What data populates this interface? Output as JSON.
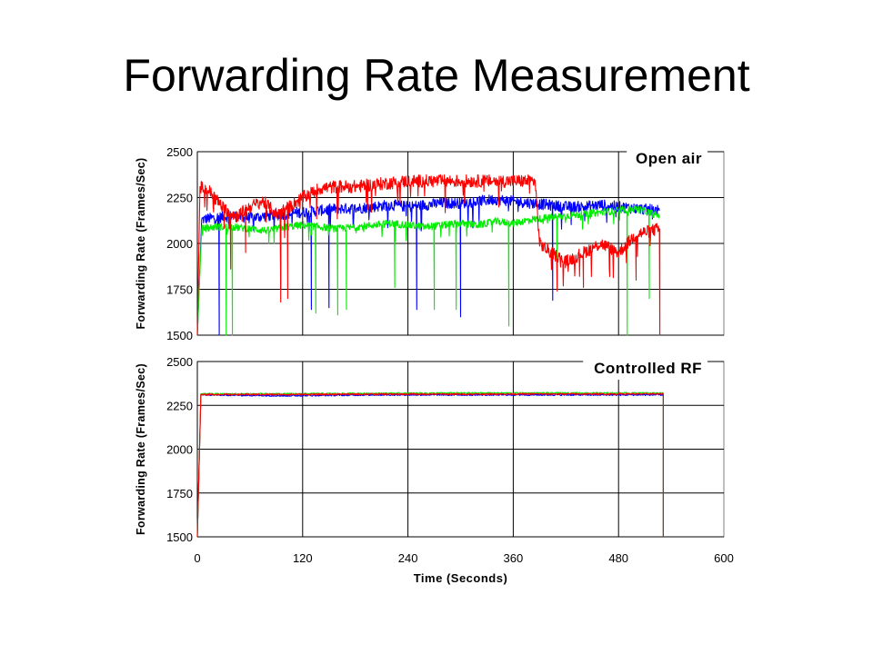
{
  "slide": {
    "title": "Forwarding Rate Measurement"
  },
  "colors": {
    "series": [
      "#0000ff",
      "#00ee00",
      "#ff0000"
    ],
    "grid": "#000000",
    "background": "#ffffff"
  },
  "chart_data": [
    {
      "type": "line",
      "annotation": "Open air",
      "xlabel": "",
      "ylabel": "Forwarding Rate (Frames/Sec)",
      "xlim": [
        0,
        600
      ],
      "ylim": [
        1500,
        2500
      ],
      "yticks": [
        "1500",
        "1750",
        "2000",
        "2250",
        "2500"
      ],
      "xgrid": [
        120,
        240,
        360,
        480
      ],
      "grid": true,
      "legend": "none",
      "series": [
        {
          "color": "#0000ff",
          "x": [
            0,
            5,
            20,
            40,
            60,
            80,
            100,
            120,
            140,
            160,
            180,
            200,
            220,
            240,
            260,
            280,
            300,
            320,
            340,
            360,
            380,
            400,
            420,
            440,
            460,
            480,
            500,
            527
          ],
          "y": [
            1500,
            2130,
            2140,
            2150,
            2140,
            2150,
            2160,
            2170,
            2180,
            2190,
            2190,
            2200,
            2210,
            2200,
            2210,
            2220,
            2220,
            2230,
            2240,
            2230,
            2220,
            2210,
            2200,
            2200,
            2210,
            2200,
            2190,
            2180
          ],
          "dips": [
            [
              25,
              1500
            ],
            [
              95,
              1750
            ],
            [
              130,
              1640
            ],
            [
              150,
              1650
            ],
            [
              250,
              1640
            ],
            [
              300,
              1600
            ],
            [
              405,
              1690
            ]
          ]
        },
        {
          "color": "#00ee00",
          "x": [
            0,
            5,
            20,
            40,
            60,
            80,
            100,
            120,
            140,
            160,
            180,
            200,
            220,
            240,
            260,
            280,
            300,
            320,
            340,
            360,
            380,
            400,
            420,
            440,
            460,
            480,
            500,
            527
          ],
          "y": [
            1500,
            2080,
            2090,
            2090,
            2080,
            2070,
            2090,
            2100,
            2090,
            2080,
            2090,
            2100,
            2110,
            2100,
            2090,
            2100,
            2110,
            2100,
            2120,
            2110,
            2130,
            2140,
            2150,
            2160,
            2170,
            2180,
            2190,
            2150
          ],
          "dips": [
            [
              33,
              1500
            ],
            [
              40,
              1500
            ],
            [
              135,
              1620
            ],
            [
              160,
              1610
            ],
            [
              170,
              1640
            ],
            [
              225,
              1760
            ],
            [
              270,
              1640
            ],
            [
              295,
              1640
            ],
            [
              355,
              1550
            ],
            [
              410,
              1750
            ],
            [
              490,
              1500
            ],
            [
              515,
              1700
            ]
          ]
        },
        {
          "color": "#ff0000",
          "x": [
            0,
            3,
            15,
            30,
            45,
            60,
            75,
            90,
            105,
            120,
            140,
            160,
            180,
            200,
            220,
            240,
            260,
            280,
            300,
            320,
            340,
            360,
            385,
            390,
            400,
            420,
            440,
            460,
            480,
            500,
            527
          ],
          "y": [
            1500,
            2310,
            2280,
            2190,
            2150,
            2200,
            2230,
            2160,
            2200,
            2250,
            2300,
            2310,
            2310,
            2320,
            2330,
            2340,
            2340,
            2340,
            2340,
            2340,
            2340,
            2340,
            2340,
            2000,
            1960,
            1900,
            1950,
            2000,
            1950,
            2050,
            2080
          ],
          "dips": [
            [
              38,
              1860
            ],
            [
              55,
              1950
            ],
            [
              95,
              1680
            ],
            [
              103,
              1700
            ],
            [
              410,
              1740
            ],
            [
              440,
              1760
            ],
            [
              470,
              1820
            ],
            [
              500,
              1800
            ],
            [
              527,
              1500
            ]
          ]
        }
      ]
    },
    {
      "type": "line",
      "annotation": "Controlled RF",
      "xlabel": "Time (Seconds)",
      "ylabel": "Forwarding Rate (Frames/Sec)",
      "xlim": [
        0,
        600
      ],
      "ylim": [
        1500,
        2500
      ],
      "xticks": [
        "0",
        "120",
        "240",
        "360",
        "480",
        "600"
      ],
      "yticks": [
        "1500",
        "1750",
        "2000",
        "2250",
        "2500"
      ],
      "xgrid": [
        120,
        240,
        360,
        480
      ],
      "grid": true,
      "legend": "none",
      "series": [
        {
          "color": "#0000ff",
          "x": [
            0,
            4,
            100,
            200,
            300,
            400,
            500,
            531,
            531
          ],
          "y": [
            1500,
            2310,
            2305,
            2310,
            2310,
            2310,
            2310,
            2310,
            1500
          ]
        },
        {
          "color": "#00ee00",
          "x": [
            0,
            4,
            100,
            200,
            300,
            400,
            500,
            531,
            531
          ],
          "y": [
            1500,
            2315,
            2315,
            2318,
            2320,
            2320,
            2320,
            2320,
            1500
          ]
        },
        {
          "color": "#ff0000",
          "x": [
            0,
            4,
            100,
            200,
            300,
            400,
            500,
            531,
            531
          ],
          "y": [
            1500,
            2312,
            2312,
            2314,
            2314,
            2315,
            2315,
            2315,
            1500
          ]
        }
      ]
    }
  ]
}
